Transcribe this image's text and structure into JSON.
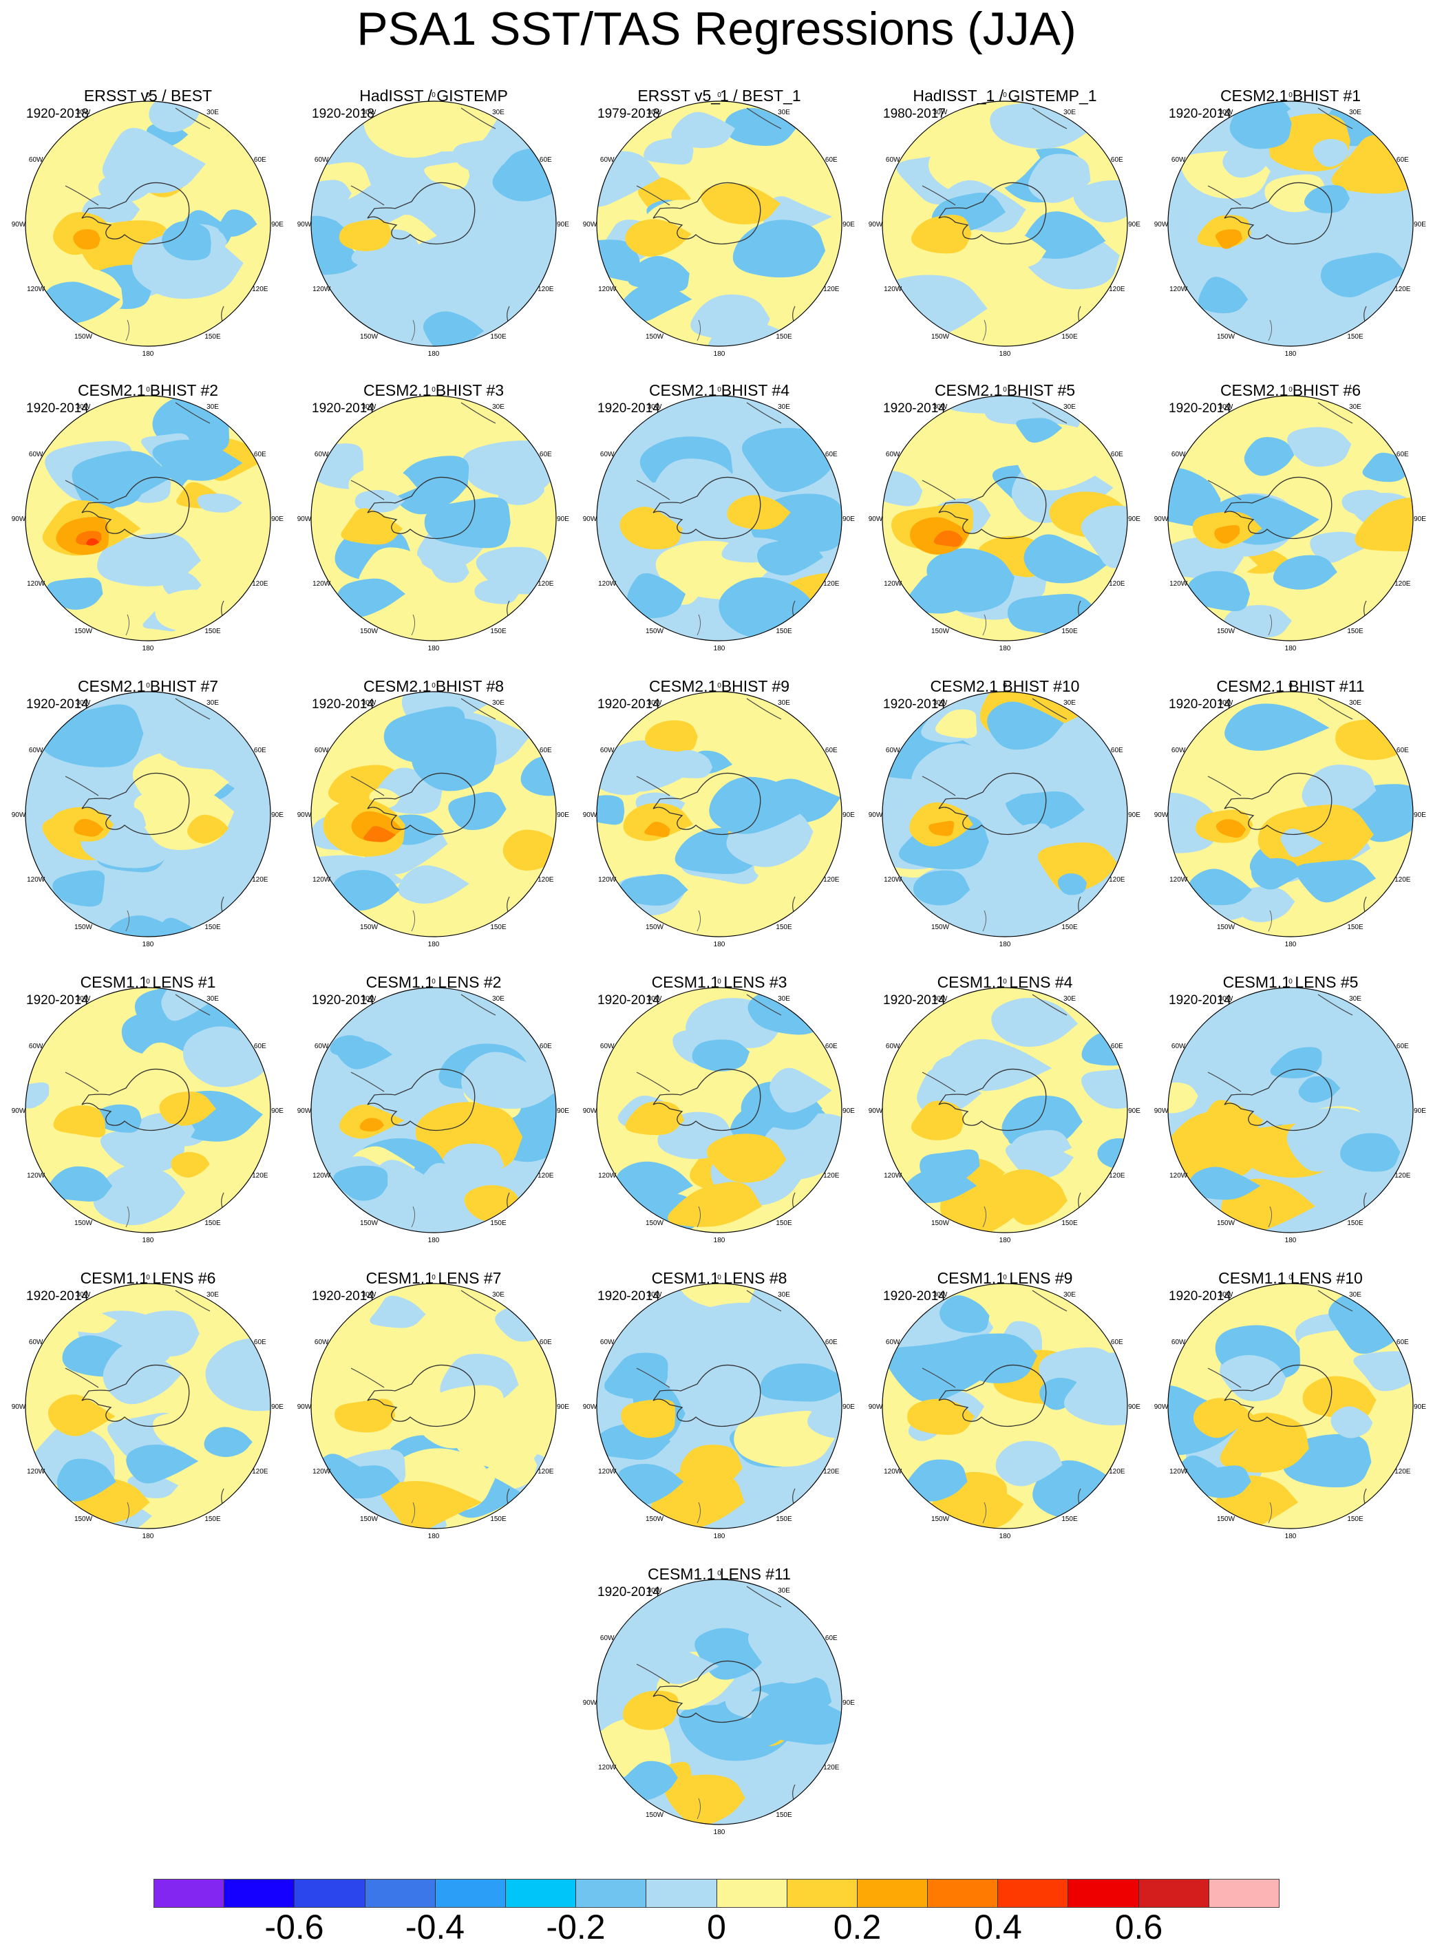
{
  "title": "PSA1 SST/TAS Regressions (JJA)",
  "lon_labels": [
    "0",
    "30E",
    "60E",
    "90E",
    "120E",
    "150E",
    "180",
    "150W",
    "120W",
    "90W",
    "60W",
    "30W"
  ],
  "colorbar": {
    "colors": [
      "#8426f1",
      "#1500ff",
      "#2c46ee",
      "#3b77e8",
      "#2b9ef8",
      "#00c5f8",
      "#6fc4f0",
      "#b0dcf3",
      "#fdf696",
      "#fed434",
      "#fea805",
      "#fe7a00",
      "#fe3a00",
      "#ee0000",
      "#d41e1e",
      "#fdb4b4"
    ],
    "labels": [
      {
        "text": "-0.6",
        "after_box": 2
      },
      {
        "text": "-0.4",
        "after_box": 4
      },
      {
        "text": "-0.2",
        "after_box": 6
      },
      {
        "text": "0",
        "after_box": 8
      },
      {
        "text": "0.2",
        "after_box": 10
      },
      {
        "text": "0.4",
        "after_box": 12
      },
      {
        "text": "0.6",
        "after_box": 14
      }
    ]
  },
  "panels": [
    {
      "title": "ERSST v5 / BEST",
      "period": "1920-2018"
    },
    {
      "title": "HadISST / GISTEMP",
      "period": "1920-2018"
    },
    {
      "title": "ERSST v5_1 / BEST_1",
      "period": "1979-2018"
    },
    {
      "title": "HadISST_1 / GISTEMP_1",
      "period": "1980-2017"
    },
    {
      "title": "CESM2.1 BHIST #1",
      "period": "1920-2014"
    },
    {
      "title": "CESM2.1 BHIST #2",
      "period": "1920-2014"
    },
    {
      "title": "CESM2.1 BHIST #3",
      "period": "1920-2014"
    },
    {
      "title": "CESM2.1 BHIST #4",
      "period": "1920-2014"
    },
    {
      "title": "CESM2.1 BHIST #5",
      "period": "1920-2014"
    },
    {
      "title": "CESM2.1 BHIST #6",
      "period": "1920-2014"
    },
    {
      "title": "CESM2.1 BHIST #7",
      "period": "1920-2014"
    },
    {
      "title": "CESM2.1 BHIST #8",
      "period": "1920-2014"
    },
    {
      "title": "CESM2.1 BHIST #9",
      "period": "1920-2014"
    },
    {
      "title": "CESM2.1 BHIST #10",
      "period": "1920-2014"
    },
    {
      "title": "CESM2.1 BHIST #11",
      "period": "1920-2014"
    },
    {
      "title": "CESM1.1 LENS #1",
      "period": "1920-2014"
    },
    {
      "title": "CESM1.1 LENS #2",
      "period": "1920-2014"
    },
    {
      "title": "CESM1.1 LENS #3",
      "period": "1920-2014"
    },
    {
      "title": "CESM1.1 LENS #4",
      "period": "1920-2014"
    },
    {
      "title": "CESM1.1 LENS #5",
      "period": "1920-2014"
    },
    {
      "title": "CESM1.1 LENS #6",
      "period": "1920-2014"
    },
    {
      "title": "CESM1.1 LENS #7",
      "period": "1920-2014"
    },
    {
      "title": "CESM1.1 LENS #8",
      "period": "1920-2014"
    },
    {
      "title": "CESM1.1 LENS #9",
      "period": "1920-2014"
    },
    {
      "title": "CESM1.1 LENS #10",
      "period": "1920-2014"
    },
    {
      "title": "CESM1.1 LENS #11",
      "period": "1920-2014"
    }
  ]
}
